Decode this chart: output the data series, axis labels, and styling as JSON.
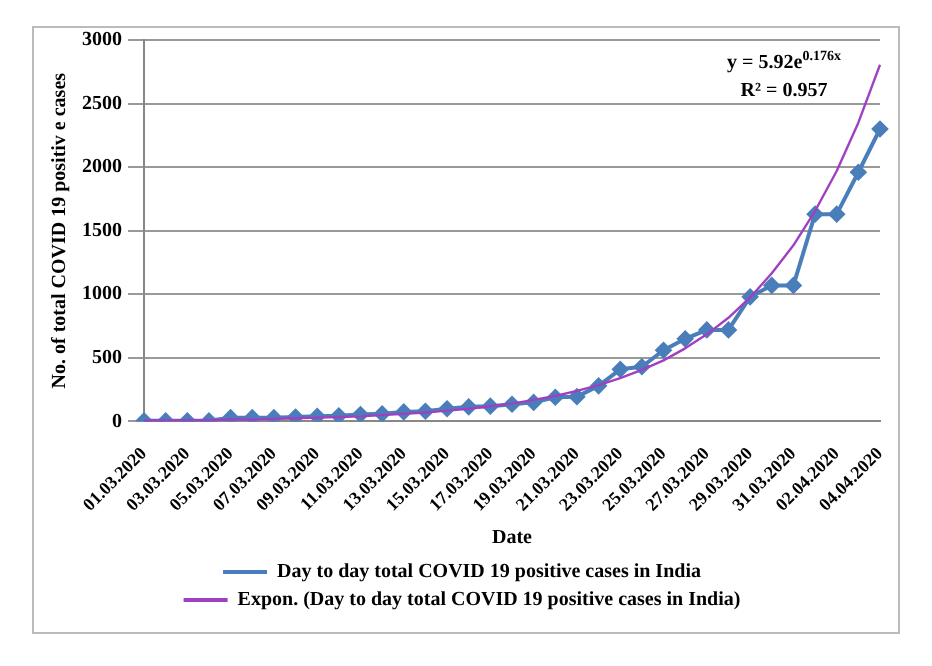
{
  "chart_data": {
    "type": "line",
    "xlabel": "Date",
    "ylabel": "No. of total COVID 19 positiv e cases",
    "categories": [
      "01.03.2020",
      null,
      "03.03.2020",
      null,
      "05.03.2020",
      null,
      "07.03.2020",
      null,
      "09.03.2020",
      null,
      "11.03.2020",
      null,
      "13.03.2020",
      null,
      "15.03.2020",
      null,
      "17.03.2020",
      null,
      "19.03.2020",
      null,
      "21.03.2020",
      null,
      "23.03.2020",
      null,
      "25.03.2020",
      null,
      "27.03.2020",
      null,
      "29.03.2020",
      null,
      "31.03.2020",
      null,
      "02.04.2020",
      null,
      "04.04.2020"
    ],
    "series": [
      {
        "name": "Day to day total COVID 19 positive cases in India",
        "color": "#4a7ebb",
        "marker": "diamond",
        "values": [
          5,
          5,
          5,
          5,
          30,
          30,
          30,
          35,
          40,
          45,
          55,
          60,
          75,
          80,
          100,
          115,
          120,
          135,
          150,
          190,
          195,
          280,
          410,
          430,
          560,
          650,
          720,
          720,
          980,
          1070,
          1070,
          1630,
          1630,
          1960,
          2300
        ]
      },
      {
        "name": "Expon. (Day to day total COVID 19 positive cases in India)",
        "color": "#a040c0",
        "marker": "none",
        "values": [
          5,
          10,
          10,
          10,
          15,
          15,
          20,
          25,
          30,
          35,
          40,
          50,
          60,
          70,
          85,
          100,
          120,
          140,
          170,
          200,
          240,
          285,
          340,
          405,
          480,
          575,
          685,
          815,
          975,
          1165,
          1385,
          1655,
          1970,
          2350,
          2805
        ]
      }
    ],
    "ylim": [
      0,
      3000
    ],
    "yticks": [
      0,
      500,
      1000,
      1500,
      2000,
      2500,
      3000
    ],
    "grid": "y",
    "legend": "bottom",
    "annotations": [
      "y = 5.92e$^{0.176x}$",
      "R² = 0.957"
    ]
  }
}
